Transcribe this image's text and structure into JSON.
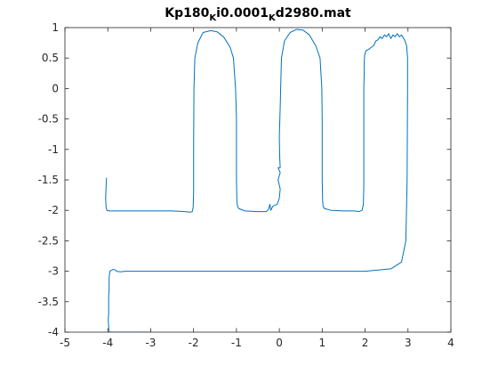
{
  "chart_data": {
    "type": "line",
    "title": {
      "parts": [
        {
          "text": "Kp180",
          "sub": false
        },
        {
          "text": "K",
          "sub": true
        },
        {
          "text": "i0.0001",
          "sub": false
        },
        {
          "text": "K",
          "sub": true
        },
        {
          "text": "d2980.mat",
          "sub": false
        }
      ]
    },
    "xlabel": "",
    "ylabel": "",
    "xlim": [
      -5,
      4
    ],
    "ylim": [
      -4,
      1
    ],
    "xticks": [
      -5,
      -4,
      -3,
      -2,
      -1,
      0,
      1,
      2,
      3,
      4
    ],
    "yticks": [
      1,
      0.5,
      0,
      -0.5,
      -1,
      -1.5,
      -2,
      -2.5,
      -3,
      -3.5,
      -4
    ],
    "xtick_labels": [
      "-5",
      "-4",
      "-3",
      "-2",
      "-1",
      "0",
      "1",
      "2",
      "3",
      "4"
    ],
    "ytick_labels": [
      "1",
      "0.5",
      "0",
      "-0.5",
      "-1",
      "-1.5",
      "-2",
      "-2.5",
      "-3",
      "-3.5",
      "-4"
    ],
    "grid": false,
    "box": true,
    "series_color": "#0072BD",
    "series": [
      {
        "x": [
          -4.03,
          -4.04,
          -4.05,
          -4.04,
          -4.02,
          -3.95,
          -3.6,
          -3.0,
          -2.5,
          -2.2,
          -2.08,
          -2.03,
          -2.01,
          -2.0,
          -2.0,
          -1.99,
          -1.97,
          -1.9,
          -1.78,
          -1.6,
          -1.45,
          -1.3,
          -1.15,
          -1.07,
          -1.02,
          -1.0,
          -1.0,
          -1.0,
          -0.99,
          -0.98,
          -0.95,
          -0.8,
          -0.5,
          -0.3,
          -0.25,
          -0.22,
          -0.2,
          -0.15,
          -0.05,
          0.0,
          0.02,
          -0.03,
          0.02,
          -0.03,
          0.02,
          0.01,
          0.0,
          0.02,
          0.03,
          0.05,
          0.12,
          0.25,
          0.4,
          0.55,
          0.7,
          0.85,
          0.95,
          0.99,
          1.0,
          1.0,
          1.0,
          1.01,
          1.02,
          1.05,
          1.2,
          1.5,
          1.75,
          1.86,
          1.93,
          1.96,
          1.97,
          1.97,
          1.97,
          1.98,
          1.98,
          1.99,
          2.02,
          2.1,
          2.15,
          2.2,
          2.25,
          2.3,
          2.35,
          2.4,
          2.45,
          2.5,
          2.55,
          2.6,
          2.65,
          2.7,
          2.75,
          2.8,
          2.85,
          2.92,
          2.97,
          2.99,
          2.99,
          2.98,
          2.95,
          2.85,
          2.6,
          2.0,
          1.0,
          0.0,
          -1.0,
          -2.0,
          -3.0,
          -3.5,
          -3.6,
          -3.7,
          -3.8,
          -3.82,
          -3.88,
          -3.95,
          -3.97,
          -3.97,
          -3.98,
          -3.98,
          -3.98,
          -3.98,
          -3.99,
          -3.98,
          -3.98,
          -3.96,
          -3.9,
          -3.6,
          -3.0
        ],
        "y": [
          -1.47,
          -1.6,
          -1.8,
          -1.95,
          -2.0,
          -2.01,
          -2.01,
          -2.01,
          -2.01,
          -2.02,
          -2.03,
          -2.02,
          -1.95,
          -1.7,
          -1.0,
          0.0,
          0.5,
          0.75,
          0.92,
          0.95,
          0.93,
          0.85,
          0.68,
          0.5,
          0.0,
          -0.5,
          -1.0,
          -1.5,
          -1.85,
          -1.92,
          -1.97,
          -2.01,
          -2.02,
          -2.02,
          -1.98,
          -1.9,
          -2.0,
          -1.93,
          -1.9,
          -1.8,
          -1.65,
          -1.5,
          -1.38,
          -1.3,
          -1.3,
          -1.15,
          -0.8,
          -0.3,
          0.0,
          0.5,
          0.78,
          0.92,
          0.97,
          0.96,
          0.88,
          0.7,
          0.5,
          0.0,
          -0.5,
          -1.0,
          -1.5,
          -1.85,
          -1.93,
          -1.97,
          -2.0,
          -2.01,
          -2.01,
          -2.02,
          -2.0,
          -1.9,
          -1.6,
          -1.0,
          0.0,
          0.3,
          0.45,
          0.55,
          0.62,
          0.65,
          0.68,
          0.7,
          0.78,
          0.8,
          0.85,
          0.82,
          0.88,
          0.85,
          0.9,
          0.82,
          0.88,
          0.85,
          0.9,
          0.85,
          0.88,
          0.8,
          0.7,
          0.5,
          0.0,
          -1.5,
          -2.5,
          -2.85,
          -2.96,
          -3.0,
          -3.0,
          -3.0,
          -3.0,
          -3.0,
          -3.0,
          -3.0,
          -3.0,
          -3.01,
          -3.0,
          -2.98,
          -2.97,
          -3.0,
          -3.1,
          -3.3,
          -3.4,
          -3.5,
          -3.6,
          -3.7,
          -3.8,
          -3.9,
          -3.95,
          -4.0,
          -4.0,
          -4.0,
          -4.0
        ]
      }
    ]
  }
}
